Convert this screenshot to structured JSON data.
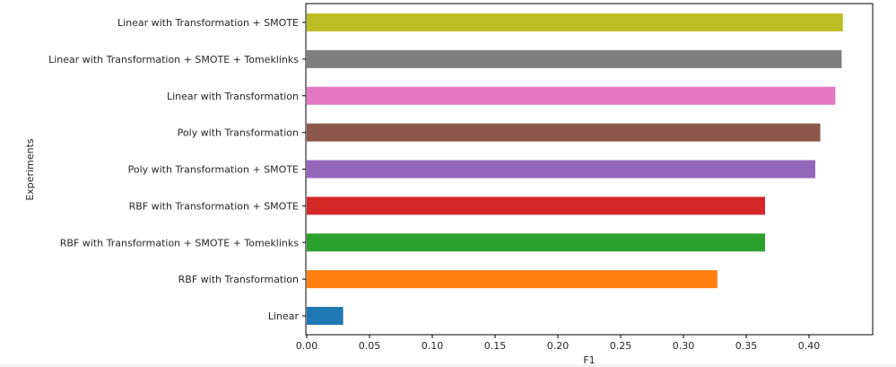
{
  "chart_data": {
    "type": "bar",
    "orientation": "horizontal",
    "title": "",
    "xlabel": "F1",
    "ylabel": "Experiments",
    "xlim": [
      0.0,
      0.45
    ],
    "xticks": [
      "0.00",
      "0.05",
      "0.10",
      "0.15",
      "0.20",
      "0.25",
      "0.30",
      "0.35",
      "0.40"
    ],
    "grid": false,
    "legend": "none",
    "categories": [
      "Linear",
      "RBF with Transformation",
      "RBF with Transformation + SMOTE + Tomeklinks",
      "RBF with Transformation + SMOTE",
      "Poly with Transformation + SMOTE",
      "Poly with Transformation",
      "Linear with Transformation",
      "Linear with Transformation + SMOTE + Tomeklinks",
      "Linear with Transformation + SMOTE"
    ],
    "values": [
      0.029,
      0.327,
      0.365,
      0.365,
      0.405,
      0.409,
      0.421,
      0.426,
      0.427
    ],
    "colors": [
      "#1f77b4",
      "#ff7f0e",
      "#2ca02c",
      "#d62728",
      "#9467bd",
      "#8c564b",
      "#e377c2",
      "#7f7f7f",
      "#bcbd22"
    ]
  }
}
